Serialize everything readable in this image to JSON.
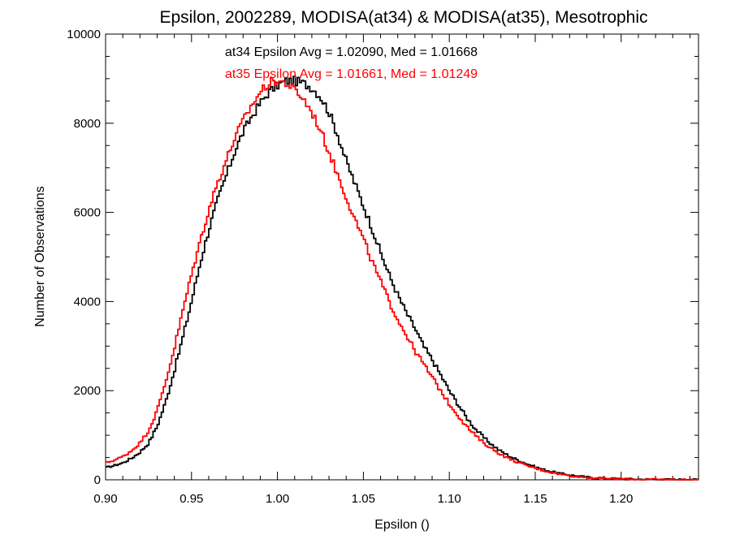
{
  "chart_data": {
    "type": "line",
    "title": "Epsilon, 2002289, MODISA(at34) & MODISA(at35), Mesotrophic",
    "xlabel": "Epsilon ()",
    "ylabel": "Number of Observations",
    "xlim": [
      0.9,
      1.245
    ],
    "ylim": [
      0,
      10000
    ],
    "grid": false,
    "x_ticks": [
      "0.90",
      "0.95",
      "1.00",
      "1.05",
      "1.10",
      "1.15",
      "1.20"
    ],
    "y_ticks": [
      "0",
      "2000",
      "4000",
      "6000",
      "8000",
      "10000"
    ],
    "annotations": [
      {
        "text": "at34 Epsilon Avg = 1.02090, Med = 1.01668",
        "color": "#000000"
      },
      {
        "text": "at35 Epsilon Avg = 1.01661, Med = 1.01249",
        "color": "#ff0000"
      }
    ],
    "series": [
      {
        "color": "#000000",
        "x": [
          0.9,
          0.905,
          0.91,
          0.915,
          0.92,
          0.925,
          0.93,
          0.935,
          0.94,
          0.945,
          0.95,
          0.955,
          0.96,
          0.965,
          0.97,
          0.975,
          0.98,
          0.985,
          0.99,
          0.995,
          1.0,
          1.005,
          1.01,
          1.015,
          1.02,
          1.025,
          1.03,
          1.035,
          1.04,
          1.045,
          1.05,
          1.055,
          1.06,
          1.065,
          1.07,
          1.075,
          1.08,
          1.085,
          1.09,
          1.095,
          1.1,
          1.105,
          1.11,
          1.115,
          1.12,
          1.125,
          1.13,
          1.135,
          1.14,
          1.145,
          1.15,
          1.155,
          1.16,
          1.165,
          1.17,
          1.175,
          1.18,
          1.185,
          1.19,
          1.195,
          1.2,
          1.205,
          1.21,
          1.215,
          1.22,
          1.225,
          1.23,
          1.235,
          1.24,
          1.245
        ],
        "values": [
          270,
          320,
          380,
          480,
          620,
          820,
          1200,
          1750,
          2450,
          3200,
          4000,
          4850,
          5600,
          6250,
          6800,
          7350,
          7800,
          8150,
          8450,
          8700,
          8850,
          8950,
          8950,
          8900,
          8800,
          8600,
          8250,
          7750,
          7150,
          6650,
          6150,
          5650,
          5100,
          4600,
          4150,
          3750,
          3400,
          3000,
          2700,
          2350,
          2000,
          1700,
          1400,
          1150,
          950,
          780,
          640,
          530,
          440,
          360,
          290,
          230,
          180,
          140,
          110,
          80,
          60,
          45,
          35,
          28,
          22,
          18,
          14,
          10,
          8,
          6,
          5,
          4,
          3,
          2
        ]
      },
      {
        "color": "#ff0000",
        "x": [
          0.9,
          0.905,
          0.91,
          0.915,
          0.92,
          0.925,
          0.93,
          0.935,
          0.94,
          0.945,
          0.95,
          0.955,
          0.96,
          0.965,
          0.97,
          0.975,
          0.98,
          0.985,
          0.99,
          0.995,
          1.0,
          1.005,
          1.01,
          1.015,
          1.02,
          1.025,
          1.03,
          1.035,
          1.04,
          1.045,
          1.05,
          1.055,
          1.06,
          1.065,
          1.07,
          1.075,
          1.08,
          1.085,
          1.09,
          1.095,
          1.1,
          1.105,
          1.11,
          1.115,
          1.12,
          1.125,
          1.13,
          1.135,
          1.14,
          1.145,
          1.15,
          1.155,
          1.16,
          1.165,
          1.17,
          1.175,
          1.18,
          1.185,
          1.19,
          1.195,
          1.2,
          1.205,
          1.21,
          1.215,
          1.22,
          1.225,
          1.23,
          1.235,
          1.24,
          1.245
        ],
        "values": [
          380,
          440,
          520,
          650,
          830,
          1100,
          1550,
          2200,
          2950,
          3800,
          4600,
          5350,
          6050,
          6650,
          7150,
          7650,
          8050,
          8400,
          8700,
          8900,
          8950,
          8900,
          8750,
          8550,
          8250,
          7850,
          7350,
          6850,
          6350,
          5850,
          5400,
          4900,
          4450,
          4000,
          3600,
          3250,
          2900,
          2600,
          2300,
          2000,
          1700,
          1450,
          1200,
          1000,
          830,
          690,
          570,
          470,
          390,
          320,
          260,
          205,
          160,
          125,
          95,
          72,
          55,
          42,
          32,
          25,
          20,
          15,
          12,
          9,
          7,
          5,
          4,
          3,
          2,
          2
        ]
      }
    ]
  }
}
